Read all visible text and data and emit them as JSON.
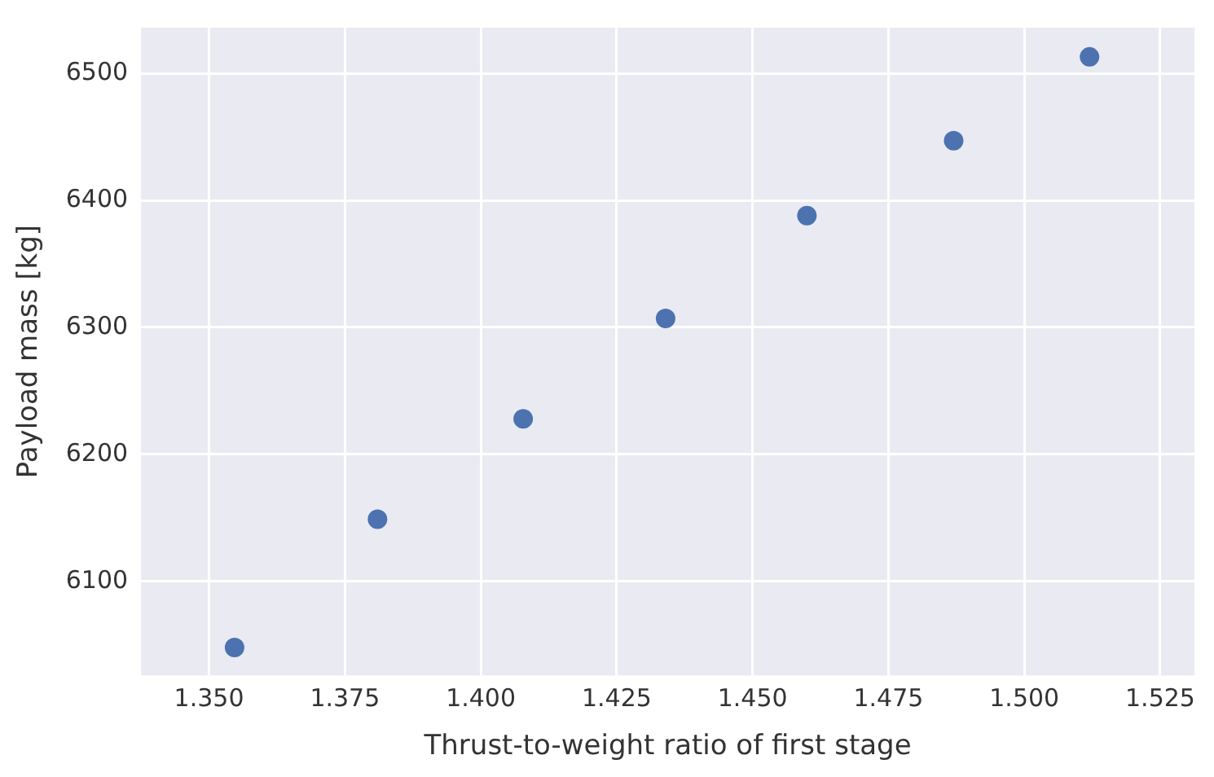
{
  "chart_data": {
    "type": "scatter",
    "xlabel": "Thrust-to-weight ratio of first stage",
    "ylabel": "Payload mass [kg]",
    "series": [
      {
        "color": "#4c72b0",
        "x": [
          1.3547,
          1.381,
          1.4078,
          1.434,
          1.46,
          1.487,
          1.512
        ],
        "values": [
          6048,
          6149,
          6228,
          6307,
          6388,
          6447,
          6513
        ]
      }
    ],
    "xlim": [
      1.3375,
      1.5313
    ],
    "xticks": [
      {
        "value": 1.35,
        "label": "1.350"
      },
      {
        "value": 1.375,
        "label": "1.375"
      },
      {
        "value": 1.4,
        "label": "1.400"
      },
      {
        "value": 1.425,
        "label": "1.425"
      },
      {
        "value": 1.45,
        "label": "1.450"
      },
      {
        "value": 1.475,
        "label": "1.475"
      },
      {
        "value": 1.5,
        "label": "1.500"
      },
      {
        "value": 1.525,
        "label": "1.525"
      }
    ],
    "ylim": [
      6026,
      6536
    ],
    "yticks": [
      6100,
      6200,
      6300,
      6400,
      6500
    ],
    "grid": true,
    "marker": "circle",
    "legend": false
  }
}
